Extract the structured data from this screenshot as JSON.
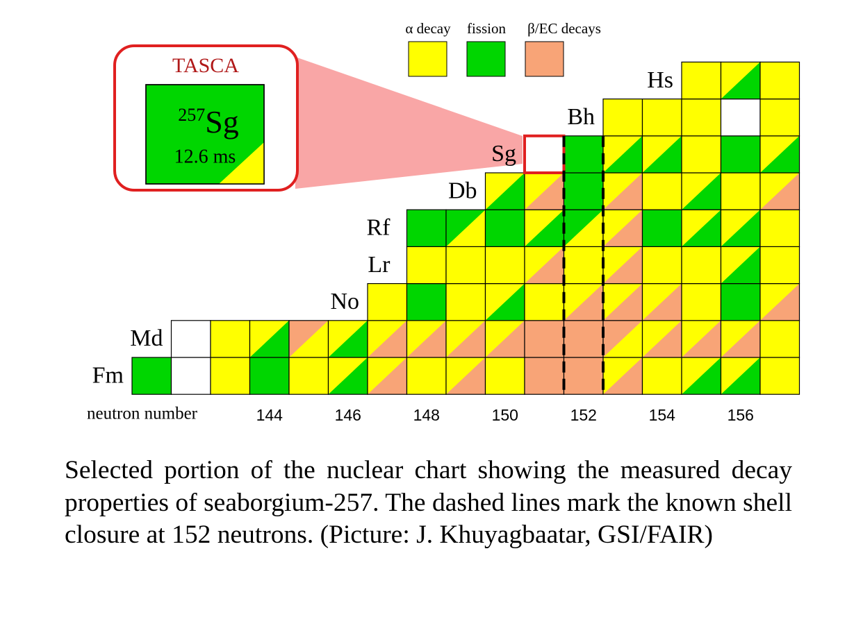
{
  "legend": [
    "α decay",
    "fission",
    "β/EC decays"
  ],
  "inset": {
    "title": "TASCA",
    "mass": "257",
    "symbol": "Sg",
    "half_life": "12.6 ms"
  },
  "elements": [
    "Fm",
    "Md",
    "No",
    "Lr",
    "Rf",
    "Db",
    "Sg",
    "Bh",
    "Hs"
  ],
  "axis": {
    "label": "neutron number",
    "ticks": [
      144,
      146,
      148,
      150,
      152,
      154,
      156
    ]
  },
  "caption": "Selected portion of the nuclear chart showing the measured decay properties of seaborgium-257. The dashed lines mark the known shell closure at 152 neutrons. (Picture: J. Khuyagbaatar, GSI/FAIR)"
}
